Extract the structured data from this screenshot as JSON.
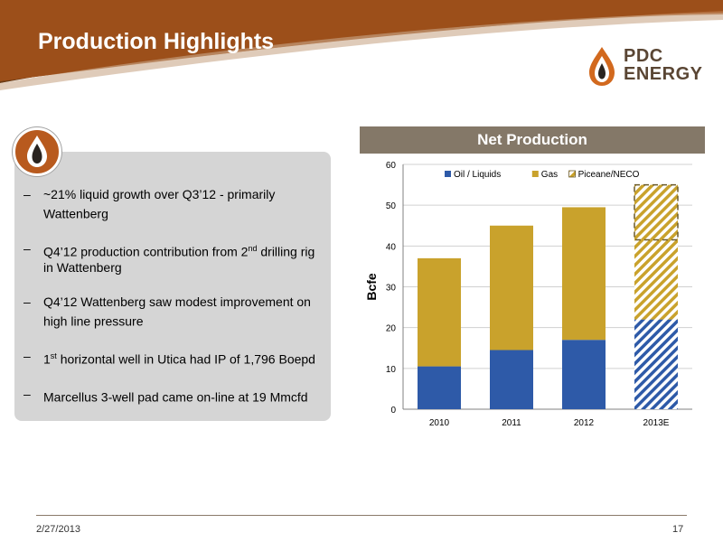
{
  "slide": {
    "title": "Production Highlights",
    "date": "2/27/2013",
    "page_number": "17"
  },
  "logo": {
    "line1": "PDC",
    "line2": "ENERGY"
  },
  "bullets": [
    {
      "pre": "~21% liquid growth over Q3’12 - primarily Wattenberg",
      "sup": "",
      "post": ""
    },
    {
      "pre": "Q4’12 production contribution from 2",
      "sup": "nd",
      "post": " drilling rig in Wattenberg"
    },
    {
      "pre": "Q4’12 Wattenberg saw modest improvement on high line pressure",
      "sup": "",
      "post": ""
    },
    {
      "pre": "1",
      "sup": "st",
      "post": " horizontal well in Utica had IP of 1,796 Boepd"
    },
    {
      "pre": "Marcellus 3-well pad came on-line at 19 Mmcfd",
      "sup": "",
      "post": ""
    }
  ],
  "chart_data": {
    "type": "bar",
    "stacked": true,
    "title": "Net Production",
    "ylabel": "Bcfe",
    "xlabel": "",
    "ylim": [
      0,
      60
    ],
    "yticks": [
      0,
      10,
      20,
      30,
      40,
      50,
      60
    ],
    "grid": true,
    "legend_position": "top",
    "categories": [
      "2010",
      "2011",
      "2012",
      "2013E"
    ],
    "series": [
      {
        "name": "Oil / Liquids",
        "values": [
          10.5,
          14.5,
          17,
          22
        ],
        "color": "#2e5aa8",
        "hatched_categories": [
          "2013E"
        ]
      },
      {
        "name": "Gas",
        "values": [
          26.5,
          30.5,
          32.5,
          19.5
        ],
        "color": "#c9a22c",
        "hatched_categories": [
          "2013E"
        ]
      },
      {
        "name": "Piceane/NECO",
        "values": [
          0,
          0,
          0,
          13.5
        ],
        "color": "#c9a22c",
        "hatched": true,
        "dashed_outline": true
      }
    ]
  },
  "colors": {
    "header_brown": "#9c4f1a",
    "header_dark": "#6a3a14",
    "banner": "#847868",
    "panel": "#d5d5d5",
    "logo_orange": "#d2691e",
    "logo_brown": "#5a4634"
  }
}
